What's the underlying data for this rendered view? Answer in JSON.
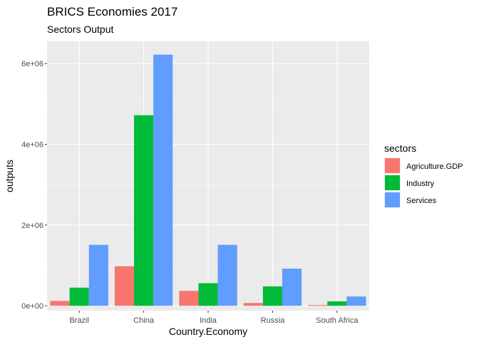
{
  "chart_data": {
    "type": "bar",
    "title": "BRICS Economies 2017",
    "subtitle": "Sectors Output",
    "xlabel": "Country.Economy",
    "ylabel": "outputs",
    "categories": [
      "Brazil",
      "China",
      "India",
      "Russia",
      "South Africa"
    ],
    "series": [
      {
        "name": "Agriculture.GDP",
        "color": "#F8766D",
        "values": [
          120000,
          980000,
          370000,
          70000,
          20000
        ]
      },
      {
        "name": "Industry",
        "color": "#00BA38",
        "values": [
          450000,
          4720000,
          560000,
          480000,
          110000
        ]
      },
      {
        "name": "Services",
        "color": "#619CFF",
        "values": [
          1510000,
          6220000,
          1510000,
          920000,
          230000
        ]
      }
    ],
    "ylim": [
      -120000,
      6550000
    ],
    "yticks": [
      0,
      2000000,
      4000000,
      6000000
    ],
    "yticklabels": [
      "0e+00",
      "2e+06",
      "4e+06",
      "6e+06"
    ],
    "legend_title": "sectors",
    "legend_position": "right",
    "grid": true,
    "panel_color": "#EBEBEB"
  }
}
